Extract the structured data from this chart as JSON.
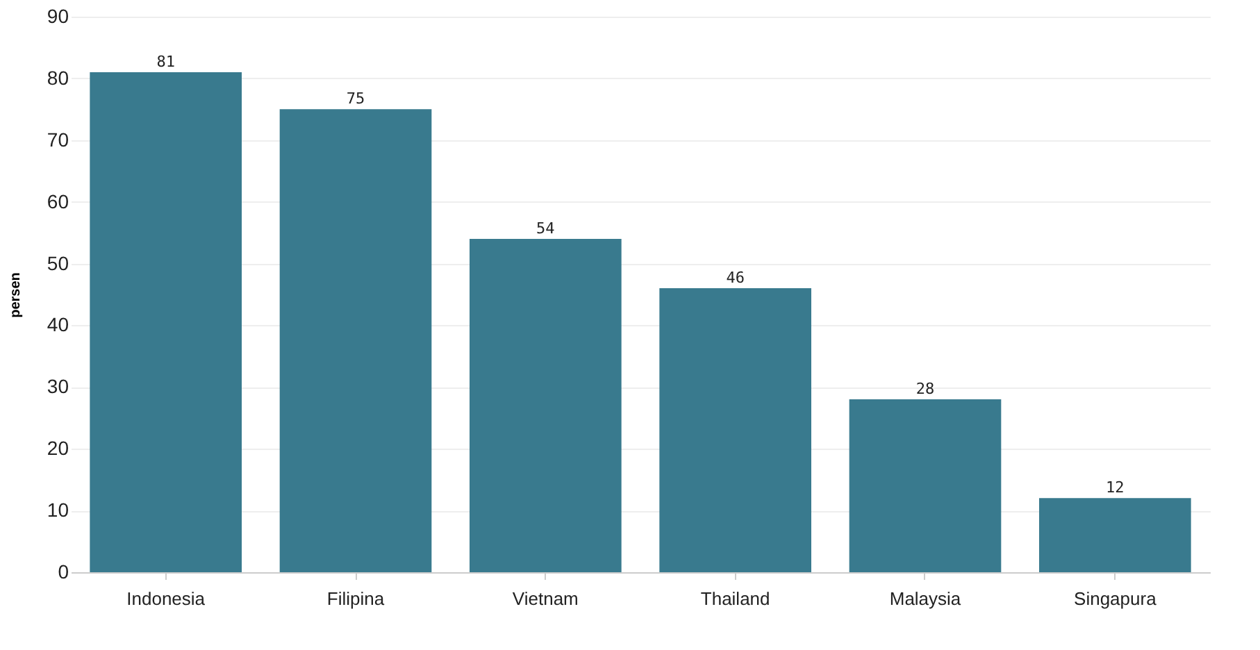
{
  "chart_data": {
    "type": "bar",
    "ylabel": "persen",
    "categories": [
      "Indonesia",
      "Filipina",
      "Vietnam",
      "Thailand",
      "Malaysia",
      "Singapura"
    ],
    "values": [
      81,
      75,
      54,
      46,
      28,
      12
    ],
    "color": "#33768a",
    "data_labels": true,
    "ylim": [
      0,
      90
    ],
    "yticks": [
      0,
      10,
      20,
      30,
      40,
      50,
      60,
      70,
      80,
      90
    ],
    "grid": "y"
  }
}
